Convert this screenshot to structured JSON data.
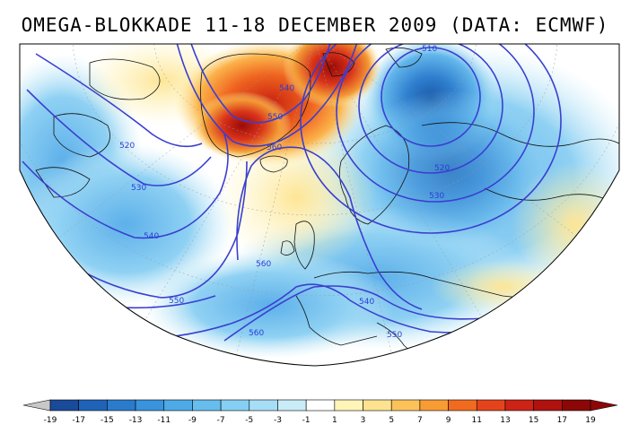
{
  "title": "OMEGA-BLOKKADE 11-18 DECEMBER 2009 (DATA: ECMWF)",
  "colors": {
    "contour": "#3a3fd0",
    "coast": "#111111",
    "grid": "#b0b0b0"
  },
  "contours": [
    {
      "label": "510"
    },
    {
      "label": "520"
    },
    {
      "label": "530"
    },
    {
      "label": "540"
    },
    {
      "label": "550"
    },
    {
      "label": "560"
    },
    {
      "label": "520"
    },
    {
      "label": "530"
    },
    {
      "label": "540"
    },
    {
      "label": "550"
    },
    {
      "label": "560"
    },
    {
      "label": "540"
    },
    {
      "label": "550"
    },
    {
      "label": "560"
    }
  ],
  "colorbar": {
    "ticks": [
      "-19",
      "-17",
      "-15",
      "-13",
      "-11",
      "-9",
      "-7",
      "-5",
      "-3",
      "-1",
      "1",
      "3",
      "5",
      "7",
      "9",
      "11",
      "13",
      "15",
      "17",
      "19"
    ],
    "colors": [
      "#1a4a9a",
      "#1f63b8",
      "#2b7bcd",
      "#3a93dd",
      "#4eaae6",
      "#66bdee",
      "#85cff3",
      "#a6def6",
      "#c9ecf8",
      "#ffffff",
      "#fff5b8",
      "#fde390",
      "#fbc25a",
      "#f79b34",
      "#f06b1f",
      "#e4441b",
      "#cc2316",
      "#b0120f",
      "#8c0707"
    ],
    "under_color": "#c8c8c8",
    "over_color": "#8c0707"
  }
}
